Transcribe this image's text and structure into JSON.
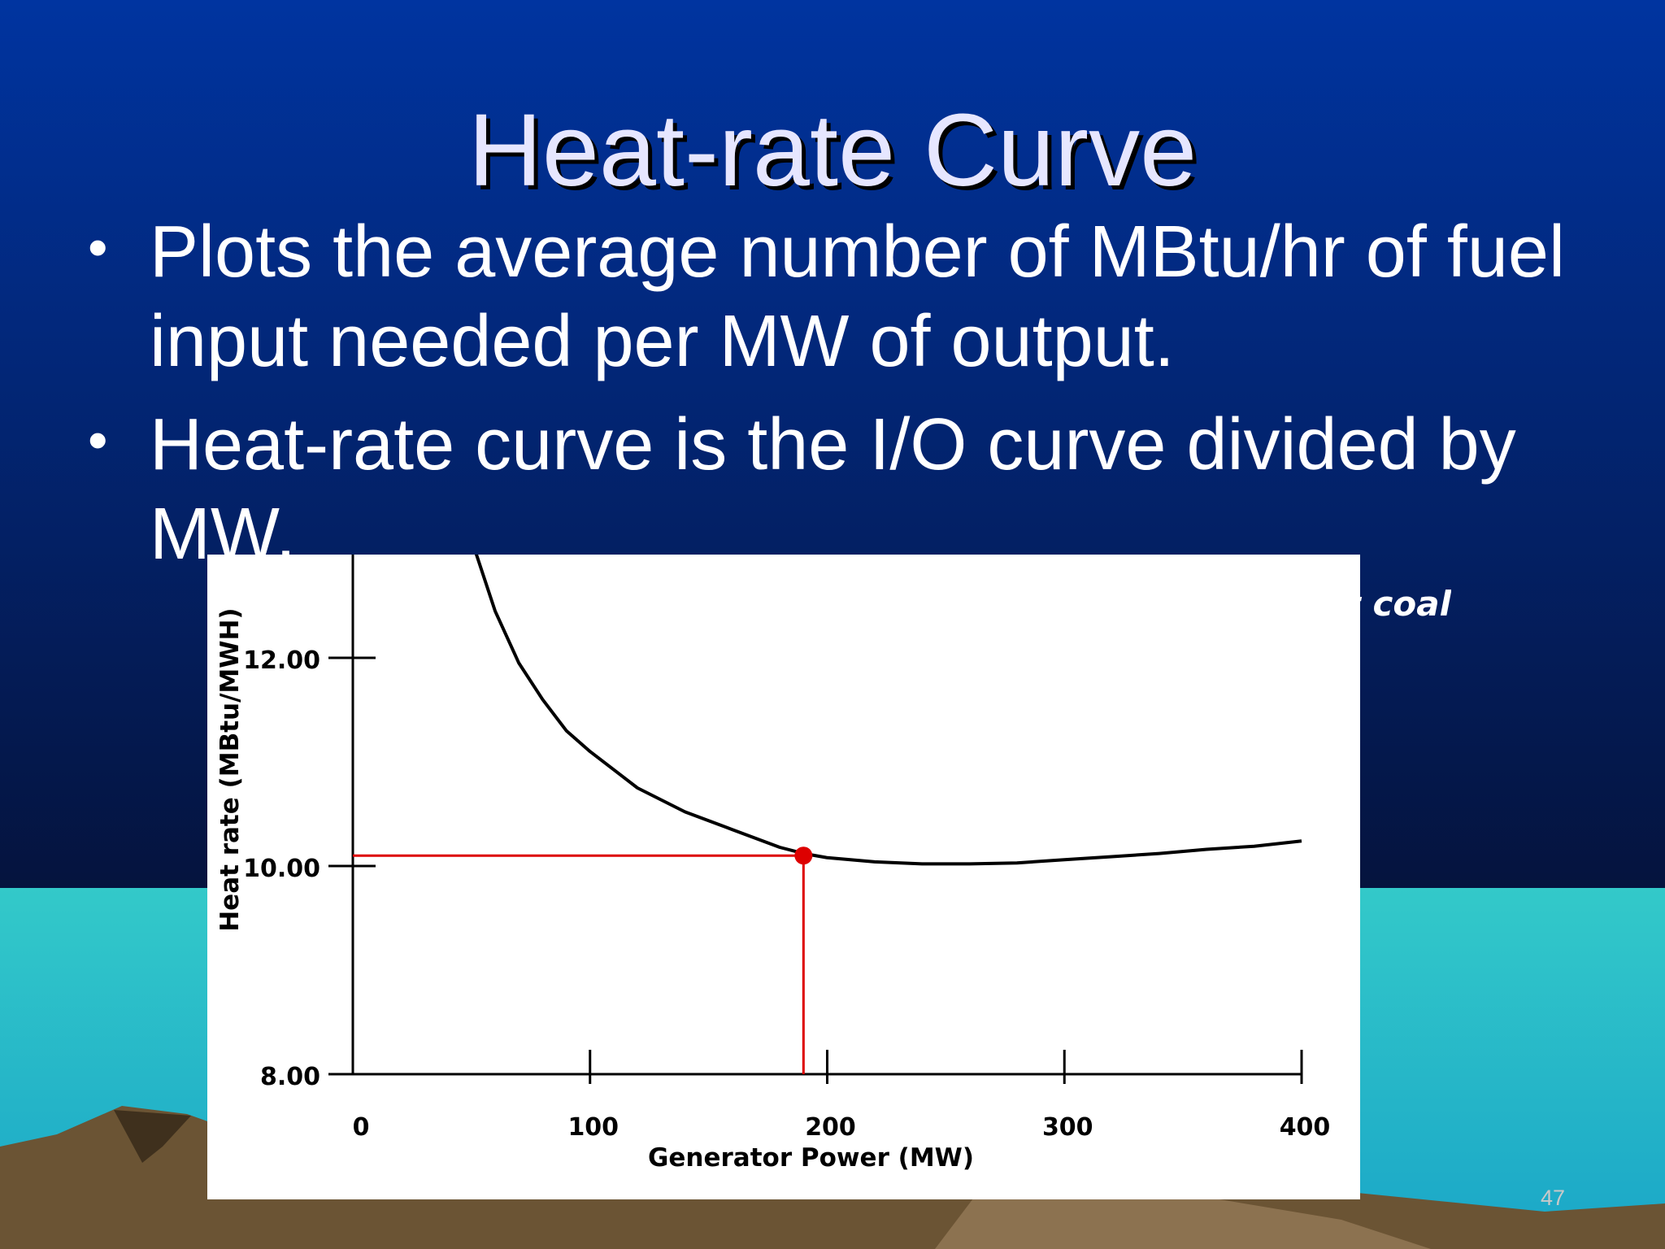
{
  "slide": {
    "title": "Heat-rate Curve",
    "bullets": [
      "Plots the average number of MBtu/hr of fuel input needed per MW of output.",
      "Heat-rate curve is the I/O curve divided by MW."
    ],
    "bullet_marker": "•",
    "partial_text": "t coal",
    "page_number": "47"
  },
  "theme": {
    "sky_top": "#0034a0",
    "sky_bottom": "#05133d",
    "sea_top": "#33c9c9",
    "sea_bottom": "#1aa6c8",
    "land": "#6b5434",
    "land_light": "#8c7250",
    "chart_background": "#ffffff",
    "curve_color": "#000000",
    "marker_color": "#dd0000"
  },
  "chart_data": {
    "type": "line",
    "title": "",
    "xlabel": "Generator Power (MW)",
    "ylabel": "Heat rate (MBtu/MWH)",
    "xlim": [
      0,
      400
    ],
    "ylim": [
      8.0,
      13.0
    ],
    "x_ticks": [
      "0",
      "100",
      "200",
      "300",
      "400"
    ],
    "y_ticks": [
      "8.00",
      "10.00",
      "12.00"
    ],
    "grid": false,
    "series": [
      {
        "x": [
          52,
          60,
          70,
          80,
          90,
          100,
          120,
          140,
          160,
          180,
          190,
          200,
          220,
          240,
          260,
          280,
          300,
          320,
          340,
          360,
          380,
          400
        ],
        "values": [
          13.0,
          12.45,
          11.95,
          11.6,
          11.3,
          11.1,
          10.75,
          10.52,
          10.35,
          10.18,
          10.12,
          10.08,
          10.04,
          10.02,
          10.02,
          10.03,
          10.06,
          10.09,
          10.12,
          10.16,
          10.19,
          10.24
        ]
      }
    ],
    "marker": {
      "x": 190,
      "y": 10.1
    }
  }
}
